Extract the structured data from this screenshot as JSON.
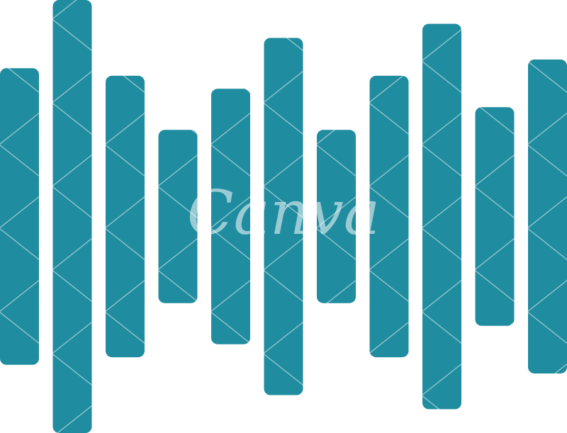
{
  "graphic": {
    "subject": "sound-wave-icon",
    "bar_color": "#1f8c9f",
    "background_color": "#ffffff",
    "bar_levels": [
      0.685,
      1.0,
      0.65,
      0.4,
      0.59,
      0.825,
      0.4,
      0.65,
      0.89,
      0.505,
      0.725
    ]
  },
  "watermark": {
    "text": "Canva",
    "color": "#ffffff",
    "opacity": 0.55
  }
}
